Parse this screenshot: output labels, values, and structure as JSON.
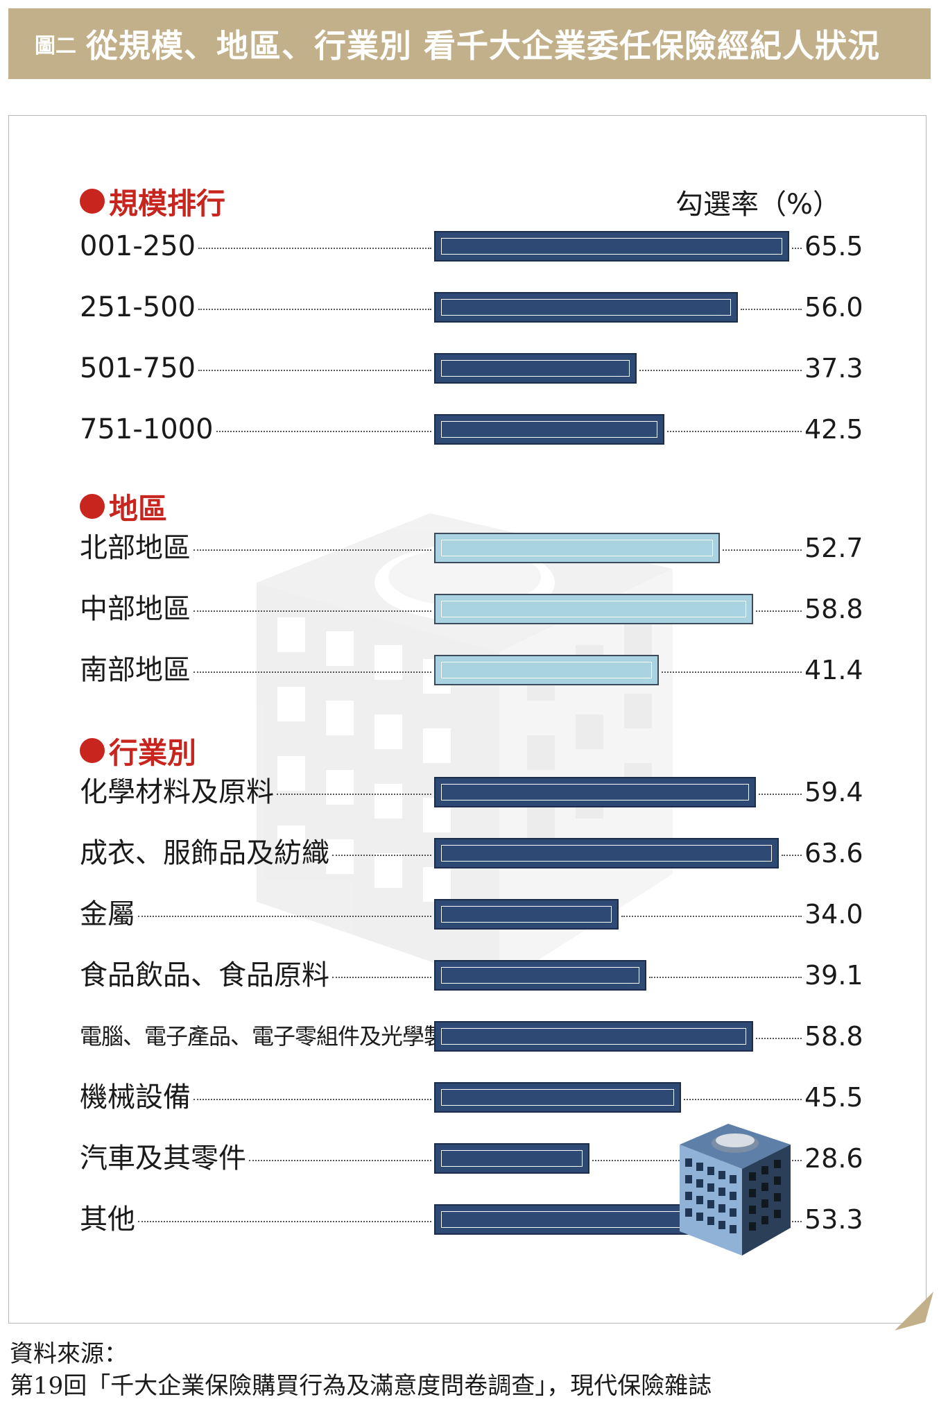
{
  "title": {
    "prefix": "圖二",
    "main": "從規模、地區、行業別 看千大企業委任保險經紀人狀況"
  },
  "chart_data": {
    "type": "bar",
    "orientation": "horizontal",
    "value_label": "勾選率（%）",
    "xlim": [
      0,
      65.5
    ],
    "colors": {
      "dark": "#2e4a74",
      "light": "#a9d3e0"
    },
    "sections": [
      {
        "name": "規模排行",
        "style": "dark",
        "categories": [
          "001-250",
          "251-500",
          "501-750",
          "751-1000"
        ],
        "values": [
          65.5,
          56.0,
          37.3,
          42.5
        ],
        "labels": [
          "65.5",
          "56.0",
          "37.3",
          "42.5"
        ]
      },
      {
        "name": "地區",
        "style": "light",
        "categories": [
          "北部地區",
          "中部地區",
          "南部地區"
        ],
        "values": [
          52.7,
          58.8,
          41.4
        ],
        "labels": [
          "52.7",
          "58.8",
          "41.4"
        ]
      },
      {
        "name": "行業別",
        "style": "dark",
        "categories": [
          "化學材料及原料",
          "成衣、服飾品及紡織",
          "金屬",
          "食品飲品、食品原料",
          "電腦、電子產品、電子零組件及光學製品",
          "機械設備",
          "汽車及其零件",
          "其他"
        ],
        "values": [
          59.4,
          63.6,
          34.0,
          39.1,
          58.8,
          45.5,
          28.6,
          53.3
        ],
        "labels": [
          "59.4",
          "63.6",
          "34.0",
          "39.1",
          "58.8",
          "45.5",
          "28.6",
          "53.3"
        ]
      }
    ]
  },
  "source": {
    "line1": "資料來源：",
    "line2": "第19回「千大企業保險購買行為及滿意度問卷調查」，現代保險雜誌"
  },
  "icons": [
    "building-watermark",
    "building-icon"
  ]
}
